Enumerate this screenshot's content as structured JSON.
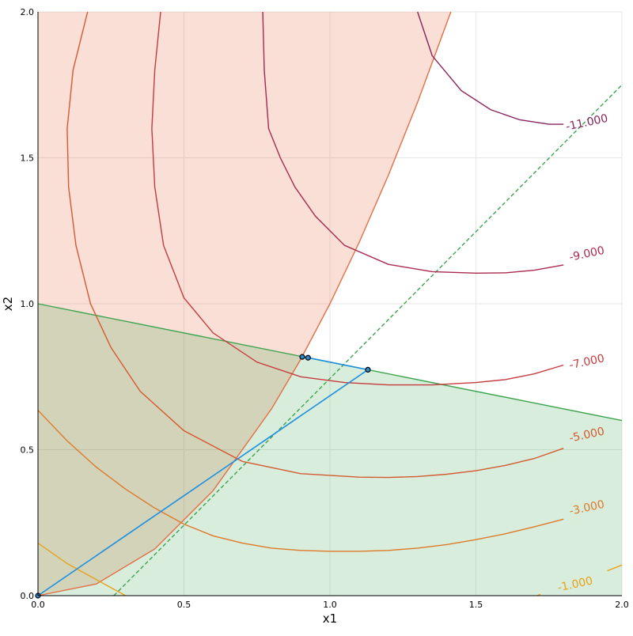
{
  "chart_data": {
    "type": "line",
    "title": "",
    "xlabel": "x1",
    "ylabel": "x2",
    "xlim": [
      0,
      2
    ],
    "ylim": [
      0,
      2
    ],
    "grid": true,
    "xticks": [
      0,
      0.5,
      1,
      1.5,
      2
    ],
    "xtick_labels": [
      "0.0",
      "0.5",
      "1.0",
      "1.5",
      "2.0"
    ],
    "yticks": [
      0,
      0.5,
      1,
      1.5,
      2
    ],
    "ytick_labels": [
      "0.0",
      "0.5",
      "1.0",
      "1.5",
      "2.0"
    ],
    "regions": [
      {
        "color": "#e26f46",
        "opacity": 0.22,
        "points": [
          [
            0,
            2
          ],
          [
            0,
            0
          ],
          [
            0.2,
            0.04
          ],
          [
            0.4,
            0.16
          ],
          [
            0.6,
            0.36
          ],
          [
            0.8,
            0.64
          ],
          [
            0.9,
            0.81
          ],
          [
            1.0,
            1.0
          ],
          [
            1.1,
            1.21
          ],
          [
            1.2,
            1.44
          ],
          [
            1.3,
            1.69
          ],
          [
            1.414,
            2.0
          ]
        ]
      },
      {
        "color": "#3da44d",
        "opacity": 0.2,
        "points": [
          [
            0,
            1
          ],
          [
            2,
            0.6
          ],
          [
            2,
            0
          ],
          [
            0,
            0
          ]
        ]
      }
    ],
    "constraint_lines": [
      {
        "color": "#e26f46",
        "dashed": false,
        "points": [
          [
            0,
            0
          ],
          [
            0.2,
            0.04
          ],
          [
            0.4,
            0.16
          ],
          [
            0.6,
            0.36
          ],
          [
            0.8,
            0.64
          ],
          [
            0.9,
            0.81
          ],
          [
            1.0,
            1.0
          ],
          [
            1.1,
            1.21
          ],
          [
            1.2,
            1.44
          ],
          [
            1.3,
            1.69
          ],
          [
            1.414,
            2.0
          ]
        ]
      },
      {
        "color": "#3da44d",
        "dashed": false,
        "points": [
          [
            0,
            1
          ],
          [
            2,
            0.6
          ]
        ]
      },
      {
        "color": "#3da44d",
        "dashed": true,
        "points": [
          [
            0.26,
            0
          ],
          [
            2.0,
            1.75
          ]
        ]
      }
    ],
    "contours": [
      {
        "label": "-1.000",
        "color": "#e6a21b",
        "label_x": 1.84,
        "label_y": 0.038,
        "segments": [
          [
            [
              0,
              0.18
            ],
            [
              0.1,
              0.11
            ],
            [
              0.2,
              0.055
            ],
            [
              0.3,
              0.0
            ]
          ],
          [
            [
              1.71,
              0.0
            ],
            [
              1.72,
              0.005
            ]
          ],
          [
            [
              1.95,
              0.085
            ],
            [
              2.0,
              0.105
            ]
          ]
        ]
      },
      {
        "label": "-3.000",
        "color": "#dd7a2a",
        "label_x": 1.88,
        "label_y": 0.3,
        "segments": [
          [
            [
              0,
              0.635
            ],
            [
              0.1,
              0.53
            ],
            [
              0.2,
              0.44
            ],
            [
              0.3,
              0.365
            ],
            [
              0.4,
              0.3
            ],
            [
              0.5,
              0.245
            ],
            [
              0.6,
              0.205
            ],
            [
              0.7,
              0.18
            ],
            [
              0.8,
              0.163
            ],
            [
              0.9,
              0.155
            ],
            [
              1.0,
              0.152
            ],
            [
              1.1,
              0.152
            ],
            [
              1.2,
              0.155
            ],
            [
              1.3,
              0.163
            ],
            [
              1.4,
              0.175
            ],
            [
              1.5,
              0.192
            ],
            [
              1.6,
              0.212
            ],
            [
              1.7,
              0.236
            ],
            [
              1.8,
              0.262
            ]
          ]
        ]
      },
      {
        "label": "-5.000",
        "color": "#d45a31",
        "label_x": 1.88,
        "label_y": 0.55,
        "segments": [
          [
            [
              0.17,
              2.0
            ],
            [
              0.12,
              1.8
            ],
            [
              0.1,
              1.6
            ],
            [
              0.105,
              1.4
            ],
            [
              0.13,
              1.2
            ],
            [
              0.18,
              1.0
            ],
            [
              0.25,
              0.85
            ],
            [
              0.35,
              0.7
            ],
            [
              0.5,
              0.565
            ],
            [
              0.7,
              0.46
            ],
            [
              0.9,
              0.418
            ],
            [
              1.1,
              0.406
            ],
            [
              1.2,
              0.405
            ],
            [
              1.3,
              0.408
            ],
            [
              1.4,
              0.416
            ],
            [
              1.5,
              0.428
            ],
            [
              1.6,
              0.446
            ],
            [
              1.7,
              0.47
            ],
            [
              1.8,
              0.505
            ]
          ]
        ]
      },
      {
        "label": "-7.000",
        "color": "#c63b3f",
        "label_x": 1.88,
        "label_y": 0.8,
        "segments": [
          [
            [
              0.42,
              2.0
            ],
            [
              0.4,
              1.8
            ],
            [
              0.39,
              1.6
            ],
            [
              0.4,
              1.4
            ],
            [
              0.43,
              1.2
            ],
            [
              0.5,
              1.02
            ],
            [
              0.6,
              0.9
            ],
            [
              0.75,
              0.8
            ],
            [
              0.9,
              0.75
            ],
            [
              1.05,
              0.73
            ],
            [
              1.2,
              0.722
            ],
            [
              1.35,
              0.722
            ],
            [
              1.5,
              0.73
            ],
            [
              1.6,
              0.74
            ],
            [
              1.7,
              0.76
            ],
            [
              1.8,
              0.79
            ]
          ]
        ]
      },
      {
        "label": "-9.000",
        "color": "#a9294f",
        "label_x": 1.88,
        "label_y": 1.17,
        "segments": [
          [
            [
              0.77,
              2.0
            ],
            [
              0.775,
              1.8
            ],
            [
              0.79,
              1.6
            ],
            [
              0.83,
              1.5
            ],
            [
              0.88,
              1.4
            ],
            [
              0.95,
              1.3
            ],
            [
              1.05,
              1.2
            ],
            [
              1.2,
              1.135
            ],
            [
              1.35,
              1.11
            ],
            [
              1.5,
              1.105
            ],
            [
              1.6,
              1.106
            ],
            [
              1.7,
              1.115
            ],
            [
              1.8,
              1.133
            ]
          ]
        ]
      },
      {
        "label": "-11.000",
        "color": "#87245e",
        "label_x": 1.88,
        "label_y": 1.62,
        "segments": [
          [
            [
              1.3,
              2.0
            ],
            [
              1.35,
              1.85
            ],
            [
              1.45,
              1.73
            ],
            [
              1.55,
              1.665
            ],
            [
              1.65,
              1.63
            ],
            [
              1.75,
              1.615
            ],
            [
              1.8,
              1.615
            ]
          ]
        ]
      }
    ],
    "path_line": {
      "color": "#1d8fe0",
      "points": [
        [
          0,
          0
        ],
        [
          1.13,
          0.774
        ],
        [
          0.93,
          0.814
        ],
        [
          0.905,
          0.818
        ]
      ]
    },
    "markers": {
      "color": "#2b8ccc",
      "points": [
        [
          0.905,
          0.818
        ],
        [
          0.925,
          0.815
        ],
        [
          1.13,
          0.774
        ],
        [
          0,
          0
        ]
      ]
    }
  }
}
